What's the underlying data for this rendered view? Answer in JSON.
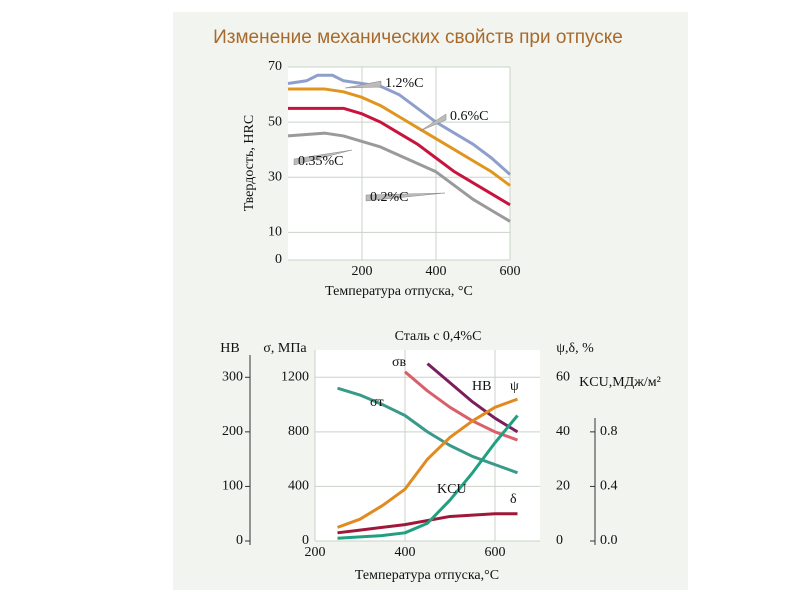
{
  "title": "Изменение механических свойств при отпуске",
  "chart_data": [
    {
      "type": "line",
      "xlabel": "Температура отпуска, °C",
      "ylabel": "Твердость, HRC",
      "xlim": [
        0,
        600
      ],
      "xticks": [
        200,
        400,
        600
      ],
      "ylim": [
        0,
        70
      ],
      "yticks": [
        0,
        10,
        30,
        50,
        70
      ],
      "grid": true,
      "series": [
        {
          "name": "1.2%C",
          "color": "#8f9fcc",
          "x": [
            0,
            50,
            80,
            120,
            150,
            200,
            250,
            300,
            350,
            400,
            450,
            500,
            550,
            600
          ],
          "values": [
            64,
            65,
            67,
            67,
            65,
            64,
            63,
            60,
            55,
            50,
            46,
            42,
            37,
            31
          ]
        },
        {
          "name": "0.6%C",
          "color": "#e0961e",
          "x": [
            0,
            100,
            150,
            200,
            250,
            300,
            350,
            400,
            450,
            500,
            550,
            600
          ],
          "values": [
            62,
            62,
            61,
            59,
            56,
            52,
            48,
            44,
            40,
            36,
            32,
            27
          ]
        },
        {
          "name": "0.35%C",
          "color": "#c8143c",
          "x": [
            0,
            100,
            150,
            200,
            250,
            300,
            350,
            400,
            450,
            500,
            550,
            600
          ],
          "values": [
            55,
            55,
            55,
            53,
            50,
            46,
            42,
            37,
            32,
            28,
            24,
            20
          ]
        },
        {
          "name": "0.2%C",
          "color": "#9a9a9a",
          "x": [
            0,
            100,
            150,
            200,
            250,
            300,
            350,
            400,
            450,
            500,
            550,
            600
          ],
          "values": [
            45,
            46,
            45,
            43,
            41,
            38,
            35,
            32,
            27,
            22,
            18,
            14
          ]
        }
      ]
    },
    {
      "type": "line",
      "title": "Сталь с 0,4%С",
      "xlabel": "Температура отпуска,°С",
      "xlim": [
        200,
        700
      ],
      "xticks": [
        200,
        400,
        600
      ],
      "grid": true,
      "ylabel": "σ, МПа",
      "ylim": [
        0,
        1400
      ],
      "yticks": [
        0,
        400,
        800,
        1200
      ],
      "y2label": "ψ,δ, %",
      "y2lim": [
        0,
        70
      ],
      "y2ticks": [
        0,
        20,
        40,
        60
      ],
      "y3label": "HB",
      "y3lim": [
        0,
        350
      ],
      "y3ticks": [
        0,
        100,
        200,
        300
      ],
      "y4label": "KCU,МДж/м²",
      "y4lim": [
        0,
        1.4
      ],
      "y4ticks": [
        {
          "value": 0,
          "label": "0.0"
        },
        0.4,
        0.8
      ],
      "series": [
        {
          "name": "σв",
          "color": "#d8606a",
          "axis": "y",
          "x": [
            400,
            450,
            500,
            550,
            600,
            650
          ],
          "values": [
            1240,
            1100,
            980,
            880,
            800,
            740
          ]
        },
        {
          "name": "σт",
          "color": "#3a9a8a",
          "axis": "y",
          "x": [
            250,
            300,
            350,
            400,
            450,
            500,
            550,
            600,
            650
          ],
          "values": [
            1120,
            1070,
            1000,
            920,
            800,
            700,
            620,
            560,
            500
          ]
        },
        {
          "name": "HB",
          "color": "#7a1f5c",
          "axis": "y3",
          "x": [
            450,
            500,
            550,
            600,
            650
          ],
          "values": [
            325,
            290,
            255,
            225,
            200
          ]
        },
        {
          "name": "ψ",
          "color": "#e08a20",
          "axis": "y2",
          "x": [
            250,
            300,
            350,
            400,
            450,
            500,
            550,
            600,
            650
          ],
          "values": [
            5,
            8,
            13,
            19,
            30,
            38,
            44,
            49,
            52
          ]
        },
        {
          "name": "δ",
          "color": "#a01838",
          "axis": "y2",
          "x": [
            250,
            300,
            400,
            500,
            600,
            650
          ],
          "values": [
            3,
            4,
            6,
            9,
            10,
            10
          ]
        },
        {
          "name": "KCU",
          "color": "#20a080",
          "axis": "y4",
          "x": [
            250,
            300,
            350,
            400,
            450,
            500,
            550,
            600,
            650
          ],
          "values": [
            0.02,
            0.03,
            0.04,
            0.06,
            0.13,
            0.3,
            0.5,
            0.72,
            0.92
          ]
        }
      ]
    }
  ]
}
